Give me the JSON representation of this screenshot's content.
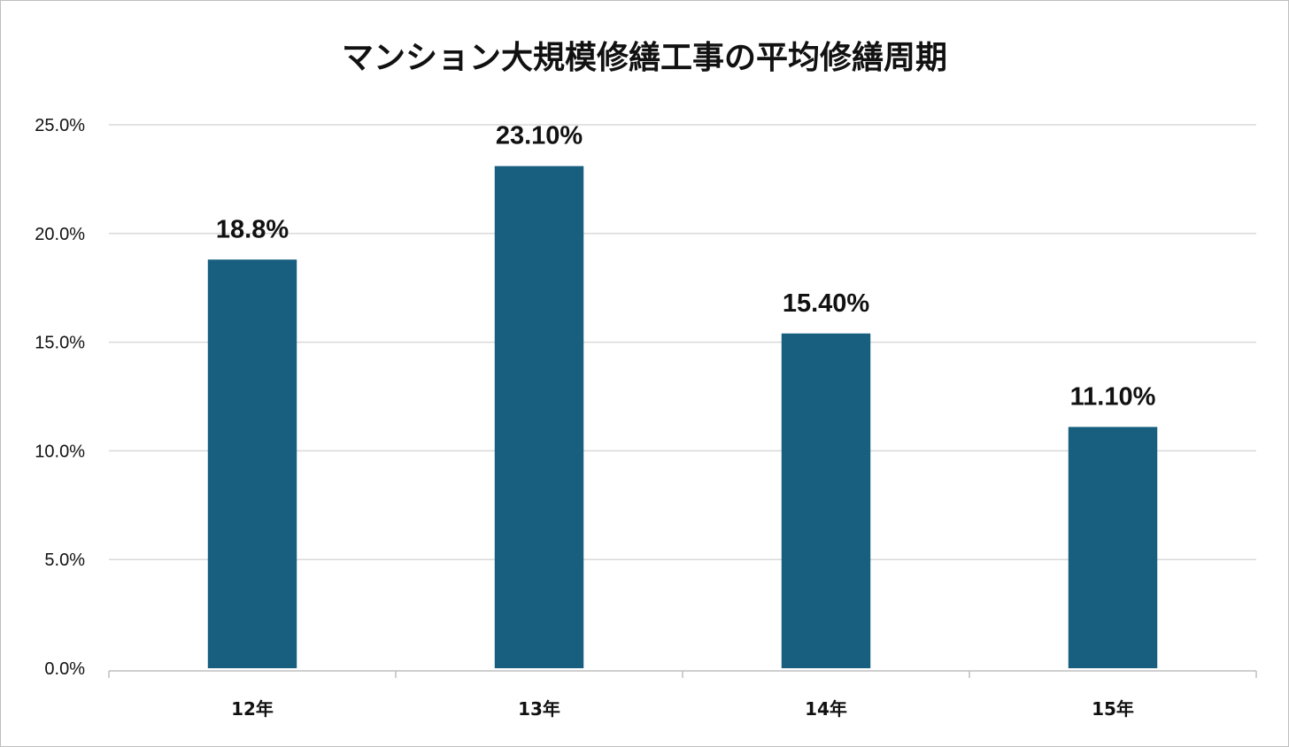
{
  "chart_data": {
    "type": "bar",
    "title": "マンション大規模修繕工事の平均修繕周期",
    "categories": [
      "12年",
      "13年",
      "14年",
      "15年"
    ],
    "values": [
      18.8,
      23.1,
      15.4,
      11.1
    ],
    "data_labels": [
      "18.8%",
      "23.10%",
      "15.40%",
      "11.10%"
    ],
    "ylim": [
      0,
      25
    ],
    "yticks": [
      0,
      5,
      10,
      15,
      20,
      25
    ],
    "ytick_labels": [
      "0.0%",
      "5.0%",
      "10.0%",
      "15.0%",
      "20.0%",
      "25.0%"
    ],
    "xlabel": "",
    "ylabel": "",
    "grid": true,
    "legend": "none",
    "bar_color": "#175e7f"
  }
}
